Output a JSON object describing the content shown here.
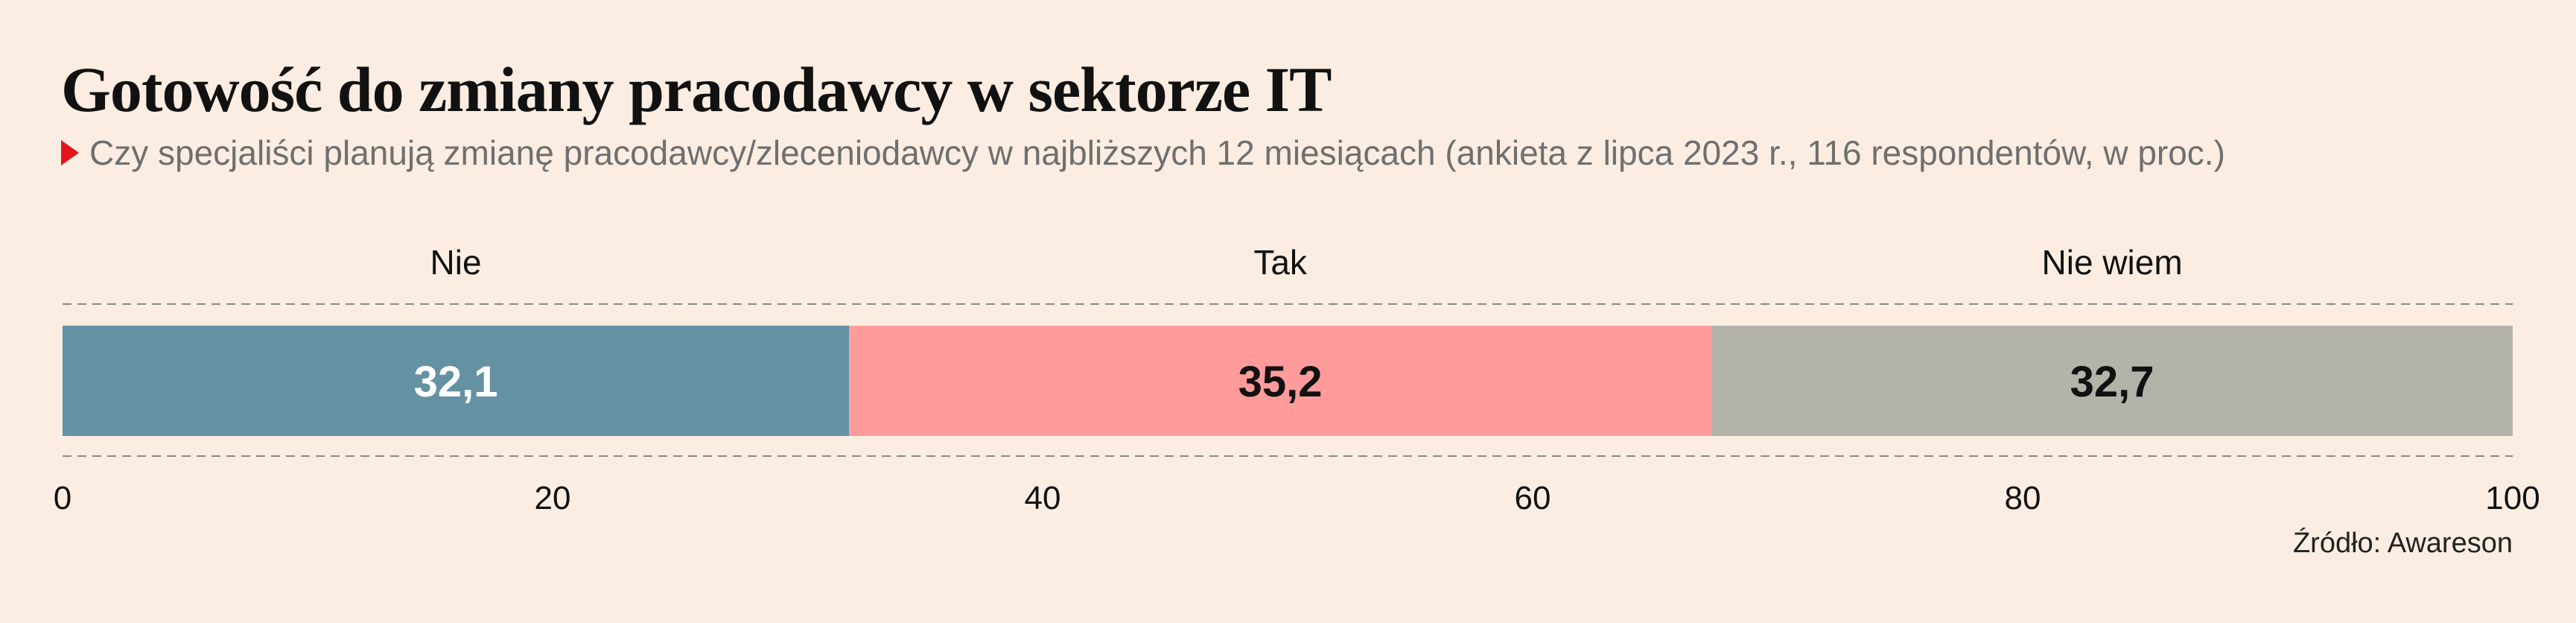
{
  "header": {
    "title": "Gotowość do zmiany pracodawcy w sektorze IT",
    "subtitle": "Czy specjaliści planują zmianę pracodawcy/zleceniodawcy w najbliższych 12 miesiącach (ankieta z lipca 2023 r., 116 respondentów, w proc.)",
    "subtitle_marker_color": "#e3141b"
  },
  "source": "Źródło: Awareson",
  "chart_data": {
    "type": "bar",
    "orientation": "horizontal-stacked",
    "categories": [
      "Nie",
      "Tak",
      "Nie wiem"
    ],
    "values": [
      32.1,
      35.2,
      32.7
    ],
    "value_labels": [
      "32,1",
      "35,2",
      "32,7"
    ],
    "colors": [
      "#6592a3",
      "#ff9b9b",
      "#b3b3aa"
    ],
    "label_colors": [
      "#ffffff",
      "#111111",
      "#111111"
    ],
    "xlim": [
      0,
      100
    ],
    "xticks": [
      "0",
      "20",
      "40",
      "60",
      "80",
      "100"
    ],
    "xtick_values": [
      0,
      20,
      40,
      60,
      80,
      100
    ],
    "grid": false,
    "legend": "top, above segments"
  }
}
